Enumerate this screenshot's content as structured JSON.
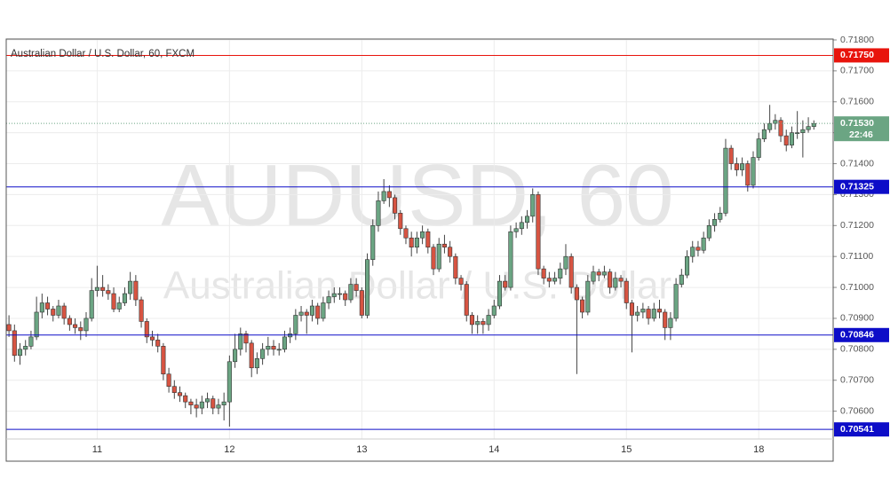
{
  "chart_data": {
    "type": "candlestick",
    "title": "Australian Dollar / U.S. Dollar, 60, FXCM",
    "watermark": "AUDUSD, 60",
    "watermark_subtitle": "Australian Dollar / U.S. Dollar",
    "up_color": "#6ba583",
    "down_color": "#d75442",
    "grid": true,
    "categories": [
      null,
      null,
      null,
      null,
      null,
      null,
      null,
      null,
      null,
      null,
      null,
      null,
      null,
      null,
      null,
      null,
      "11",
      null,
      null,
      null,
      null,
      null,
      null,
      null,
      null,
      null,
      null,
      null,
      null,
      null,
      null,
      null,
      null,
      null,
      null,
      null,
      null,
      null,
      null,
      null,
      "12",
      null,
      null,
      null,
      null,
      null,
      null,
      null,
      null,
      null,
      null,
      null,
      null,
      null,
      null,
      null,
      null,
      null,
      null,
      null,
      null,
      null,
      null,
      null,
      "13",
      null,
      null,
      null,
      null,
      null,
      null,
      null,
      null,
      null,
      null,
      null,
      null,
      null,
      null,
      null,
      null,
      null,
      null,
      null,
      null,
      null,
      null,
      null,
      "14",
      null,
      null,
      null,
      null,
      null,
      null,
      null,
      null,
      null,
      null,
      null,
      null,
      null,
      null,
      null,
      null,
      null,
      null,
      null,
      null,
      null,
      null,
      null,
      "15",
      null,
      null,
      null,
      null,
      null,
      null,
      null,
      null,
      null,
      null,
      null,
      null,
      null,
      null,
      null,
      null,
      null,
      null,
      null,
      null,
      null,
      null,
      null,
      "18",
      null,
      null,
      null,
      null,
      null,
      null,
      null,
      null,
      null,
      null
    ],
    "open": [
      0.7088,
      0.7086,
      0.7078,
      0.708,
      0.7081,
      0.7084,
      0.7092,
      0.7095,
      0.7093,
      0.7091,
      0.7094,
      0.709,
      0.7088,
      0.7087,
      0.7086,
      0.709,
      0.7099,
      0.71,
      0.7099,
      0.7098,
      0.7093,
      0.7095,
      0.7098,
      0.7102,
      0.7096,
      0.7089,
      0.7084,
      0.7083,
      0.7081,
      0.7072,
      0.7068,
      0.7066,
      0.7065,
      0.7063,
      0.7062,
      0.7061,
      0.7063,
      0.7064,
      0.7061,
      0.7062,
      0.7063,
      0.7076,
      0.708,
      0.7085,
      0.7082,
      0.7074,
      0.7077,
      0.708,
      0.7081,
      0.708,
      0.708,
      0.7084,
      0.7085,
      0.7091,
      0.7092,
      0.7091,
      0.7094,
      0.709,
      0.7095,
      0.7097,
      0.7098,
      0.7098,
      0.7096,
      0.7101,
      0.7099,
      0.7091,
      0.7109,
      0.712,
      0.7128,
      0.7131,
      0.7129,
      0.7124,
      0.7119,
      0.7116,
      0.7113,
      0.7116,
      0.7118,
      0.7113,
      0.7106,
      0.7114,
      0.7113,
      0.711,
      0.7103,
      0.7101,
      0.7091,
      0.7088,
      0.7089,
      0.7088,
      0.7091,
      0.7094,
      0.7102,
      0.71,
      0.7118,
      0.7119,
      0.7121,
      0.7123,
      0.713,
      0.7106,
      0.7103,
      0.7102,
      0.7103,
      0.7106,
      0.711,
      0.71,
      0.7096,
      0.7092,
      0.7102,
      0.7105,
      0.7104,
      0.7105,
      0.71,
      0.7103,
      0.7102,
      0.7095,
      0.7091,
      0.7092,
      0.7093,
      0.709,
      0.7093,
      0.7092,
      0.7087,
      0.709,
      0.7101,
      0.7104,
      0.711,
      0.7113,
      0.7112,
      0.7116,
      0.712,
      0.7122,
      0.7124,
      0.7145,
      0.714,
      0.7138,
      0.714,
      0.7133,
      0.7142,
      0.7148,
      0.7151,
      0.7153,
      0.7154,
      0.7149,
      0.7146,
      0.715,
      0.715,
      0.7151,
      0.7152
    ],
    "high": [
      0.7091,
      0.7088,
      0.7082,
      0.7083,
      0.7086,
      0.7097,
      0.7098,
      0.7097,
      0.7094,
      0.7096,
      0.7095,
      0.7091,
      0.709,
      0.7089,
      0.7092,
      0.7103,
      0.7107,
      0.7104,
      0.7101,
      0.71,
      0.7097,
      0.71,
      0.7105,
      0.7104,
      0.7097,
      0.709,
      0.7086,
      0.7085,
      0.7082,
      0.7074,
      0.707,
      0.7068,
      0.7066,
      0.7064,
      0.7064,
      0.7065,
      0.7066,
      0.7065,
      0.7064,
      0.7066,
      0.7078,
      0.7085,
      0.7087,
      0.7086,
      0.7083,
      0.7079,
      0.7082,
      0.7084,
      0.7083,
      0.7082,
      0.7086,
      0.7087,
      0.7093,
      0.7094,
      0.7093,
      0.7096,
      0.7095,
      0.7097,
      0.7099,
      0.71,
      0.71,
      0.7099,
      0.7103,
      0.7103,
      0.71,
      0.7111,
      0.7122,
      0.7131,
      0.7135,
      0.7133,
      0.713,
      0.7125,
      0.712,
      0.7118,
      0.7118,
      0.712,
      0.7119,
      0.7114,
      0.7116,
      0.7117,
      0.7115,
      0.7111,
      0.7104,
      0.7102,
      0.7092,
      0.7091,
      0.709,
      0.7093,
      0.7096,
      0.7104,
      0.7104,
      0.712,
      0.7121,
      0.7123,
      0.7125,
      0.7132,
      0.7131,
      0.7107,
      0.7105,
      0.7105,
      0.7108,
      0.7114,
      0.7111,
      0.7101,
      0.7097,
      0.7104,
      0.7107,
      0.7106,
      0.7107,
      0.7106,
      0.7105,
      0.7104,
      0.7103,
      0.7096,
      0.7094,
      0.7095,
      0.7094,
      0.7095,
      0.7096,
      0.7093,
      0.7092,
      0.7103,
      0.7106,
      0.7112,
      0.7115,
      0.7115,
      0.7118,
      0.7122,
      0.7124,
      0.7126,
      0.7148,
      0.7146,
      0.7142,
      0.7142,
      0.7141,
      0.7144,
      0.715,
      0.7153,
      0.7159,
      0.7156,
      0.7155,
      0.7151,
      0.7152,
      0.7157,
      0.7154,
      0.7155,
      0.7154
    ],
    "low": [
      0.7084,
      0.7076,
      0.7075,
      0.7078,
      0.708,
      0.7083,
      0.709,
      0.7091,
      0.7089,
      0.709,
      0.7088,
      0.7086,
      0.7085,
      0.7083,
      0.7084,
      0.7089,
      0.7097,
      0.7097,
      0.7096,
      0.7092,
      0.7092,
      0.7094,
      0.7096,
      0.7094,
      0.7087,
      0.7082,
      0.7081,
      0.7079,
      0.707,
      0.7066,
      0.7064,
      0.7063,
      0.7061,
      0.7059,
      0.7058,
      0.7059,
      0.7061,
      0.7059,
      0.7059,
      0.7057,
      0.7055,
      0.7074,
      0.7078,
      0.7079,
      0.7071,
      0.7072,
      0.7075,
      0.7078,
      0.7078,
      0.7078,
      0.7079,
      0.7082,
      0.7083,
      0.7089,
      0.7085,
      0.7089,
      0.7088,
      0.7089,
      0.7093,
      0.7095,
      0.7096,
      0.7094,
      0.7095,
      0.7097,
      0.709,
      0.709,
      0.7107,
      0.7118,
      0.7127,
      0.7126,
      0.7122,
      0.7117,
      0.7114,
      0.711,
      0.7111,
      0.7114,
      0.7111,
      0.7104,
      0.7105,
      0.7111,
      0.7108,
      0.7101,
      0.7099,
      0.7089,
      0.7085,
      0.7085,
      0.7085,
      0.7086,
      0.709,
      0.7093,
      0.7099,
      0.7099,
      0.7116,
      0.7117,
      0.7119,
      0.7121,
      0.7104,
      0.7101,
      0.71,
      0.7101,
      0.7101,
      0.7104,
      0.7098,
      0.7072,
      0.709,
      0.7091,
      0.7101,
      0.7102,
      0.7103,
      0.7098,
      0.7099,
      0.71,
      0.7093,
      0.7079,
      0.7089,
      0.709,
      0.7088,
      0.7089,
      0.709,
      0.7083,
      0.7083,
      0.7089,
      0.71,
      0.7103,
      0.7108,
      0.711,
      0.7111,
      0.7115,
      0.7118,
      0.7121,
      0.7123,
      0.7138,
      0.7136,
      0.7136,
      0.7131,
      0.7132,
      0.7141,
      0.7147,
      0.715,
      0.7151,
      0.7147,
      0.7144,
      0.7145,
      0.7148,
      0.7142,
      0.715,
      0.7151
    ],
    "close": [
      0.7086,
      0.7078,
      0.708,
      0.7081,
      0.7084,
      0.7092,
      0.7095,
      0.7093,
      0.7091,
      0.7094,
      0.709,
      0.7088,
      0.7087,
      0.7086,
      0.709,
      0.7099,
      0.71,
      0.7099,
      0.7098,
      0.7093,
      0.7095,
      0.7098,
      0.7102,
      0.7096,
      0.7089,
      0.7084,
      0.7083,
      0.7081,
      0.7072,
      0.7068,
      0.7066,
      0.7065,
      0.7063,
      0.7062,
      0.7061,
      0.7063,
      0.7064,
      0.7061,
      0.7062,
      0.7063,
      0.7076,
      0.708,
      0.7085,
      0.7082,
      0.7074,
      0.7077,
      0.708,
      0.7081,
      0.708,
      0.708,
      0.7084,
      0.7085,
      0.7091,
      0.7092,
      0.7091,
      0.7094,
      0.709,
      0.7095,
      0.7097,
      0.7098,
      0.7098,
      0.7096,
      0.7101,
      0.7099,
      0.7091,
      0.7109,
      0.712,
      0.7128,
      0.7131,
      0.7129,
      0.7124,
      0.7119,
      0.7116,
      0.7113,
      0.7116,
      0.7118,
      0.7113,
      0.7106,
      0.7114,
      0.7113,
      0.711,
      0.7103,
      0.7101,
      0.7091,
      0.7088,
      0.7089,
      0.7088,
      0.7091,
      0.7094,
      0.7102,
      0.71,
      0.7118,
      0.7119,
      0.7121,
      0.7123,
      0.713,
      0.7106,
      0.7103,
      0.7102,
      0.7103,
      0.7106,
      0.711,
      0.71,
      0.7096,
      0.7092,
      0.7102,
      0.7105,
      0.7104,
      0.7105,
      0.71,
      0.7103,
      0.7102,
      0.7095,
      0.7091,
      0.7092,
      0.7093,
      0.709,
      0.7093,
      0.7092,
      0.7087,
      0.709,
      0.7101,
      0.7104,
      0.711,
      0.7113,
      0.7112,
      0.7116,
      0.712,
      0.7122,
      0.7124,
      0.7145,
      0.714,
      0.7138,
      0.714,
      0.7133,
      0.7142,
      0.7148,
      0.7151,
      0.7153,
      0.7154,
      0.7149,
      0.7146,
      0.715,
      0.715,
      0.7151,
      0.7152,
      0.7153
    ],
    "ylim": [
      0.7051,
      0.718
    ],
    "yticks": [
      {
        "value": 0.706,
        "label": "0.70600"
      },
      {
        "value": 0.707,
        "label": "0.70700"
      },
      {
        "value": 0.708,
        "label": "0.70800"
      },
      {
        "value": 0.709,
        "label": "0.70900"
      },
      {
        "value": 0.71,
        "label": "0.71000"
      },
      {
        "value": 0.711,
        "label": "0.71100"
      },
      {
        "value": 0.712,
        "label": "0.71200"
      },
      {
        "value": 0.713,
        "label": "0.71300"
      },
      {
        "value": 0.714,
        "label": "0.71400"
      },
      {
        "value": 0.715,
        "label": "0.71500"
      },
      {
        "value": 0.716,
        "label": "0.71600"
      },
      {
        "value": 0.717,
        "label": "0.71700"
      },
      {
        "value": 0.718,
        "label": "0.71800"
      }
    ],
    "levels": [
      {
        "value": 0.7175,
        "label": "0.71750",
        "color": "#e8140c"
      },
      {
        "value": 0.71325,
        "label": "0.71325",
        "color": "#0d0dc8"
      },
      {
        "value": 0.70846,
        "label": "0.70846",
        "color": "#0d0dc8"
      },
      {
        "value": 0.70541,
        "label": "0.70541",
        "color": "#0d0dc8"
      }
    ],
    "last_price": {
      "value": 0.7153,
      "label": "0.71530",
      "countdown": "22:46",
      "color": "#6ba583"
    }
  }
}
